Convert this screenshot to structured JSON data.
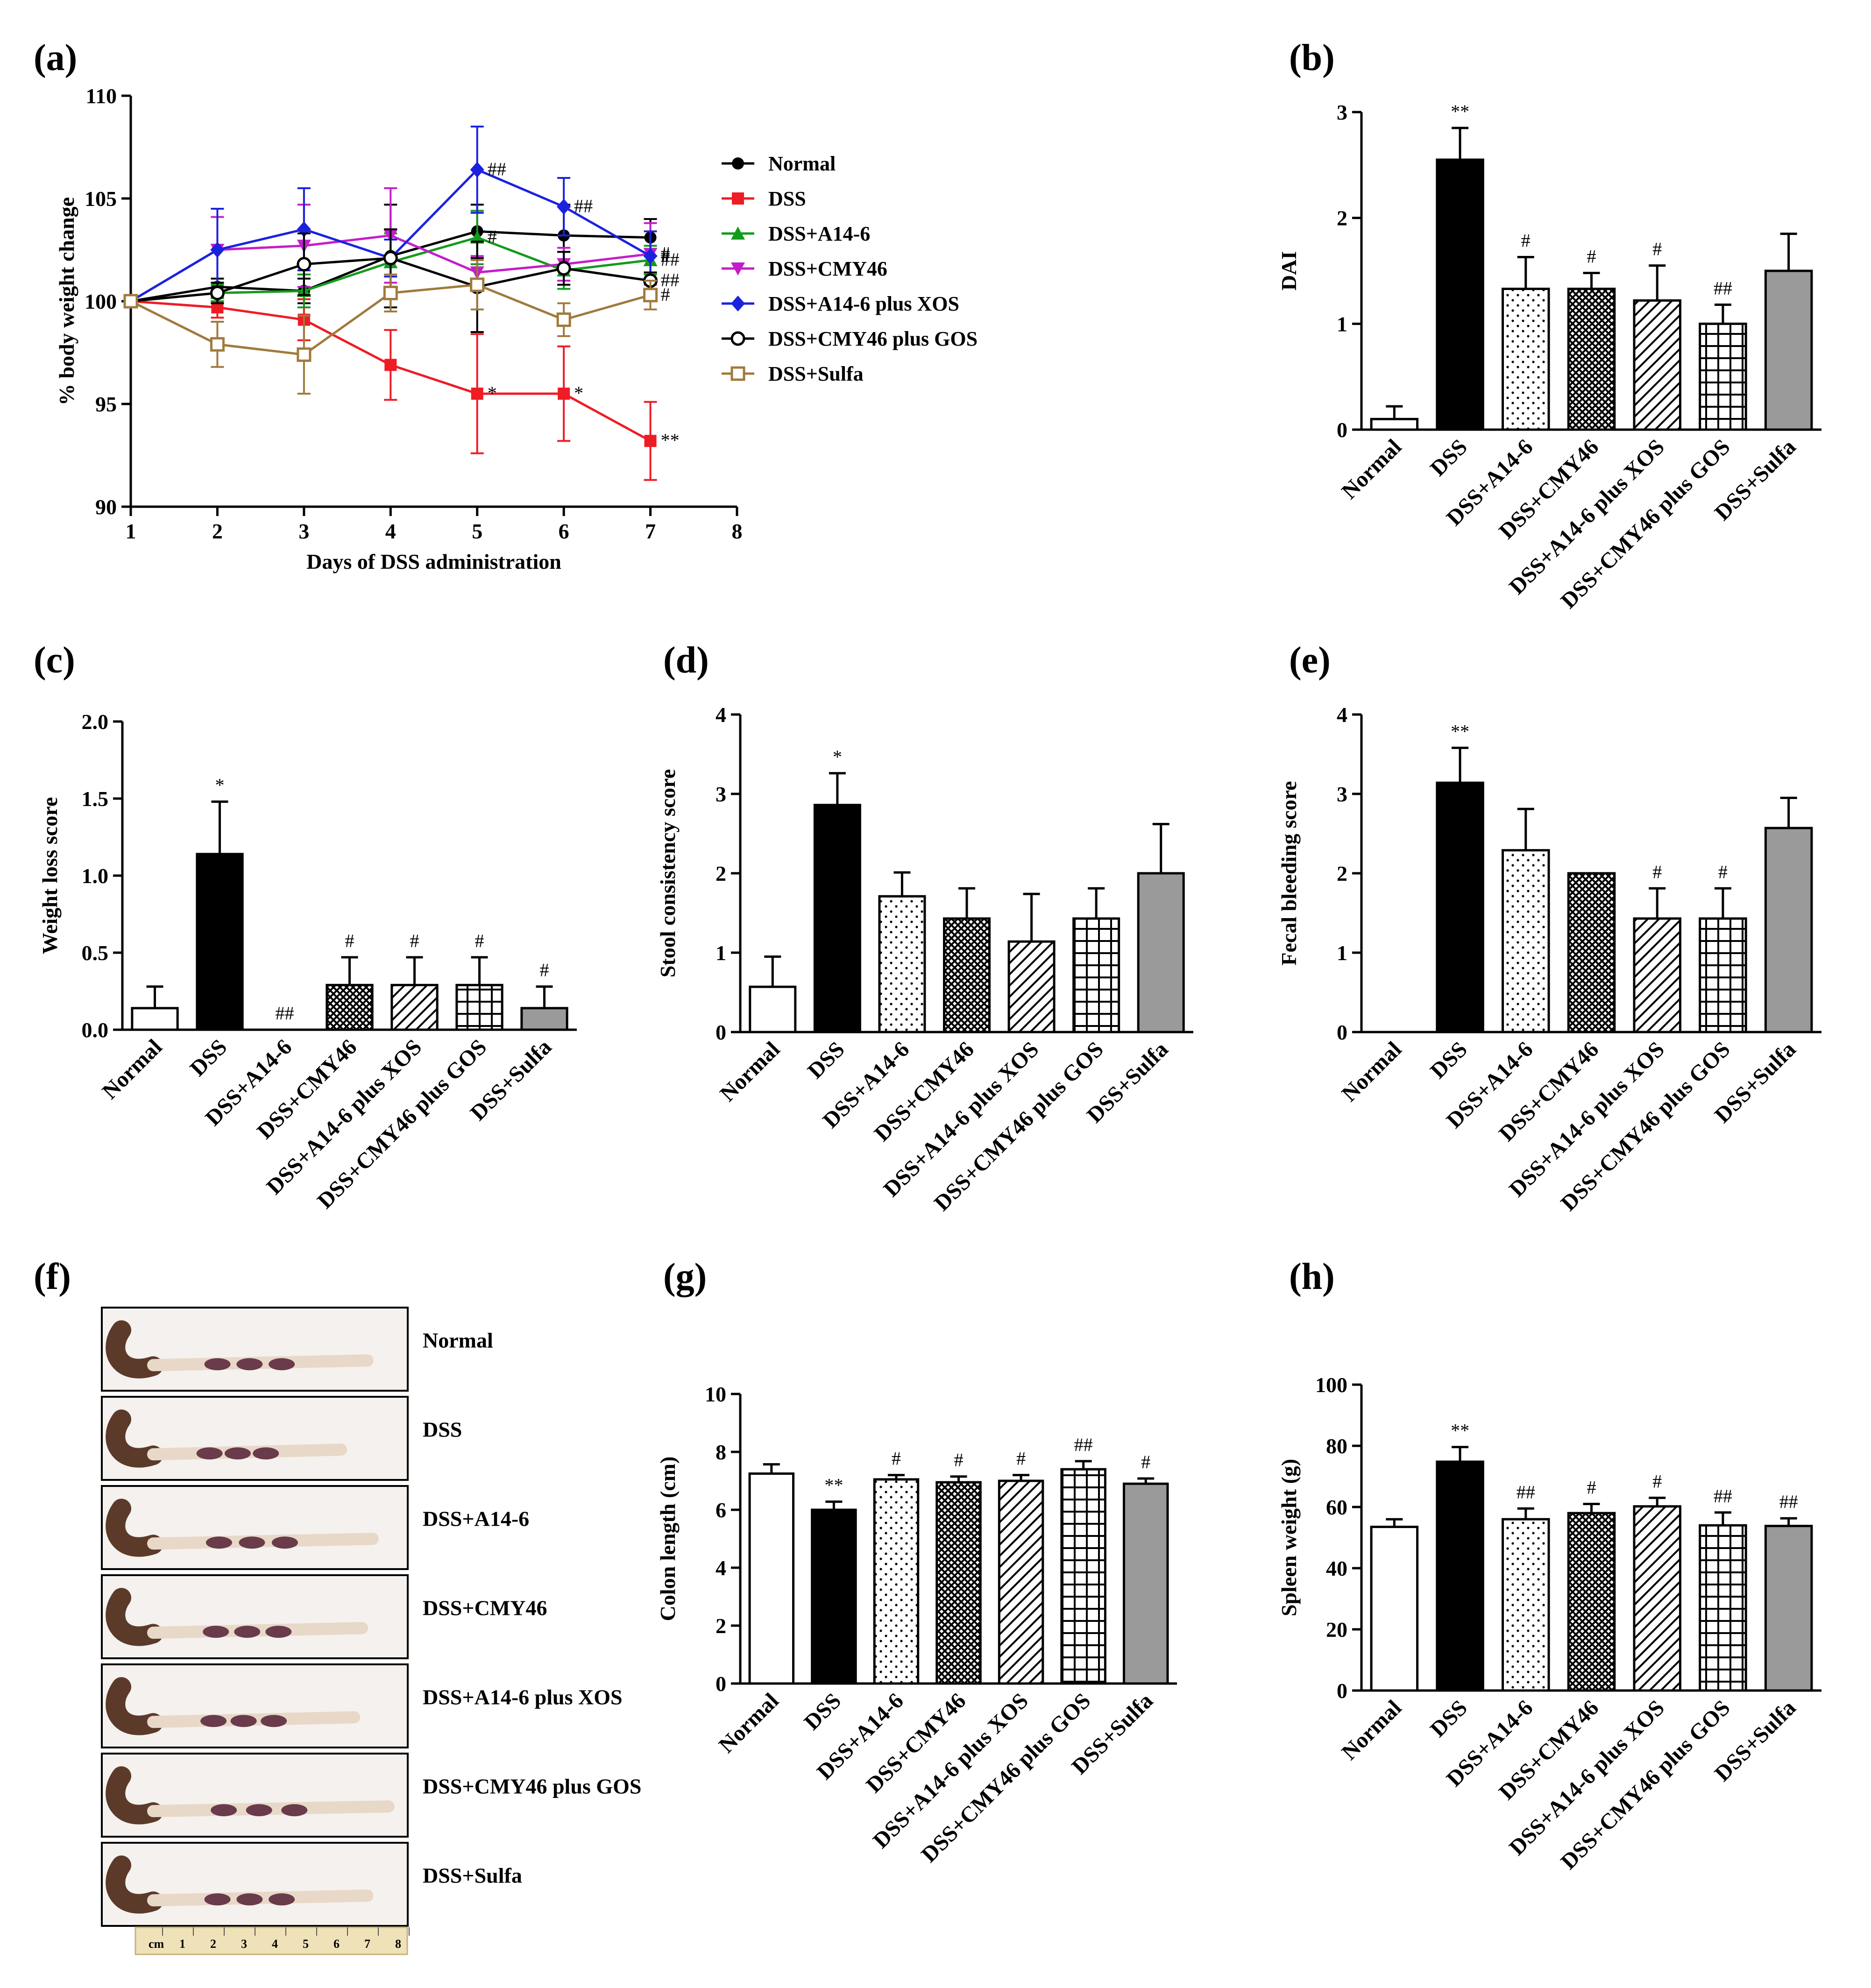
{
  "colors": {
    "normal": "#000000",
    "dss": "#ee1c25",
    "a146": "#139b1c",
    "cmy46": "#c41ec8",
    "a146_xos": "#1a22e0",
    "cmy46_gos": "#000000",
    "sulfa": "#a07a3c",
    "bar_dss": "#000000",
    "bar_sulfa": "#9a9a9a",
    "bar_white": "#ffffff"
  },
  "patterns": [
    "white",
    "black",
    "dots",
    "crosshatch",
    "diagonal",
    "grid",
    "gray"
  ],
  "chart_data": [
    {
      "id": "a",
      "panel_label": "(a)",
      "type": "line",
      "xlabel": "Days of DSS administration",
      "ylabel": "% body weight change",
      "xlim": [
        1,
        8
      ],
      "ylim": [
        90,
        110
      ],
      "xticks": [
        "1",
        "2",
        "3",
        "4",
        "5",
        "6",
        "7",
        "8"
      ],
      "yticks": [
        "90",
        "95",
        "100",
        "105",
        "110"
      ],
      "x": [
        1,
        2,
        3,
        4,
        5,
        6,
        7
      ],
      "series": [
        {
          "name": "Normal",
          "key": "normal",
          "marker": "circle",
          "values": [
            100,
            100.7,
            100.5,
            102.2,
            103.4,
            103.2,
            103.1
          ],
          "err": [
            0,
            0.4,
            0.6,
            2.5,
            1.3,
            1.5,
            0.9
          ],
          "sig": [
            "",
            "",
            "",
            "",
            "",
            "",
            ""
          ]
        },
        {
          "name": "DSS",
          "key": "dss",
          "marker": "square",
          "values": [
            100,
            99.7,
            99.1,
            96.9,
            95.5,
            95.5,
            93.2
          ],
          "err": [
            0,
            0.5,
            1.0,
            1.7,
            2.9,
            2.3,
            1.9
          ],
          "sig": [
            "",
            "",
            "",
            "",
            "*",
            "*",
            "**"
          ]
        },
        {
          "name": "DSS+A14-6",
          "key": "a146",
          "marker": "triangle-up",
          "values": [
            100,
            100.4,
            100.5,
            101.9,
            103.1,
            101.5,
            102.0
          ],
          "err": [
            0,
            0.4,
            0.8,
            1.4,
            1.3,
            0.9,
            0.7
          ],
          "sig": [
            "",
            "",
            "",
            "",
            "#",
            "",
            "##"
          ]
        },
        {
          "name": "DSS+CMY46",
          "key": "cmy46",
          "marker": "triangle-down",
          "values": [
            100,
            102.5,
            102.7,
            103.2,
            101.4,
            101.8,
            102.3
          ],
          "err": [
            0,
            1.6,
            2.0,
            2.3,
            0.8,
            0.8,
            1.5
          ],
          "sig": [
            "",
            "",
            "",
            "",
            "",
            "",
            "#"
          ]
        },
        {
          "name": "DSS+A14-6 plus XOS",
          "key": "a146_xos",
          "marker": "diamond",
          "values": [
            100,
            102.5,
            103.5,
            102.1,
            106.4,
            104.6,
            102.2
          ],
          "err": [
            0,
            2.0,
            2.0,
            0.9,
            2.1,
            1.4,
            1.2
          ],
          "sig": [
            "",
            "",
            "",
            "",
            "##",
            "##",
            "#"
          ]
        },
        {
          "name": "DSS+CMY46 plus GOS",
          "key": "cmy46_gos",
          "marker": "circle-open",
          "values": [
            100,
            100.4,
            101.8,
            102.1,
            100.7,
            101.6,
            101.0
          ],
          "err": [
            0,
            0.5,
            1.5,
            1.4,
            2.2,
            0.8,
            0.4
          ],
          "sig": [
            "",
            "",
            "",
            "",
            "",
            "",
            "##"
          ]
        },
        {
          "name": "DSS+Sulfa",
          "key": "sulfa",
          "marker": "square-open",
          "values": [
            100,
            97.9,
            97.4,
            100.4,
            100.8,
            99.1,
            100.3
          ],
          "err": [
            0,
            1.1,
            1.9,
            0.9,
            1.2,
            0.8,
            0.7
          ],
          "sig": [
            "",
            "",
            "",
            "",
            "",
            "",
            "#"
          ]
        }
      ]
    },
    {
      "id": "b",
      "panel_label": "(b)",
      "type": "bar",
      "ylabel": "DAI",
      "ylim": [
        0,
        3
      ],
      "yticks": [
        "0",
        "1",
        "2",
        "3"
      ],
      "categories": [
        "Normal",
        "DSS",
        "DSS+A14-6",
        "DSS+CMY46",
        "DSS+A14-6 plus XOS",
        "DSS+CMY46 plus GOS",
        "DSS+Sulfa"
      ],
      "values": [
        0.1,
        2.55,
        1.33,
        1.33,
        1.22,
        1.0,
        1.5
      ],
      "err": [
        0.12,
        0.3,
        0.3,
        0.15,
        0.33,
        0.18,
        0.35
      ],
      "sig": [
        "",
        "**",
        "#",
        "#",
        "#",
        "##",
        ""
      ]
    },
    {
      "id": "c",
      "panel_label": "(c)",
      "type": "bar",
      "ylabel": "Weight loss score",
      "ylim": [
        0,
        2.0
      ],
      "yticks": [
        "0.0",
        "0.5",
        "1.0",
        "1.5",
        "2.0"
      ],
      "categories": [
        "Normal",
        "DSS",
        "DSS+A14-6",
        "DSS+CMY46",
        "DSS+A14-6 plus XOS",
        "DSS+CMY46 plus GOS",
        "DSS+Sulfa"
      ],
      "values": [
        0.14,
        1.14,
        0,
        0.29,
        0.29,
        0.29,
        0.14
      ],
      "err": [
        0.14,
        0.34,
        0,
        0.18,
        0.18,
        0.18,
        0.14
      ],
      "sig": [
        "",
        "*",
        "##",
        "#",
        "#",
        "#",
        "#"
      ]
    },
    {
      "id": "d",
      "panel_label": "(d)",
      "type": "bar",
      "ylabel": "Stool consistency score",
      "ylim": [
        0,
        4
      ],
      "yticks": [
        "0",
        "1",
        "2",
        "3",
        "4"
      ],
      "categories": [
        "Normal",
        "DSS",
        "DSS+A14-6",
        "DSS+CMY46",
        "DSS+A14-6 plus XOS",
        "DSS+CMY46 plus GOS",
        "DSS+Sulfa"
      ],
      "values": [
        0.57,
        2.86,
        1.71,
        1.43,
        1.14,
        1.43,
        2.0
      ],
      "err": [
        0.38,
        0.4,
        0.3,
        0.38,
        0.6,
        0.38,
        0.62
      ],
      "sig": [
        "",
        "*",
        "",
        "",
        "",
        "",
        ""
      ]
    },
    {
      "id": "e",
      "panel_label": "(e)",
      "type": "bar",
      "ylabel": "Fecal bleeding score",
      "ylim": [
        0,
        4
      ],
      "yticks": [
        "0",
        "1",
        "2",
        "3",
        "4"
      ],
      "categories": [
        "Normal",
        "DSS",
        "DSS+A14-6",
        "DSS+CMY46",
        "DSS+A14-6 plus XOS",
        "DSS+CMY46 plus GOS",
        "DSS+Sulfa"
      ],
      "values": [
        0,
        3.14,
        2.29,
        2.0,
        1.43,
        1.43,
        2.57
      ],
      "err": [
        0,
        0.44,
        0.52,
        0,
        0.38,
        0.38,
        0.38
      ],
      "sig": [
        "",
        "**",
        "",
        "",
        "#",
        "#",
        ""
      ]
    },
    {
      "id": "g",
      "panel_label": "(g)",
      "type": "bar",
      "ylabel": "Colon length (cm)",
      "ylim": [
        0,
        10
      ],
      "yticks": [
        "0",
        "2",
        "4",
        "6",
        "8",
        "10"
      ],
      "categories": [
        "Normal",
        "DSS",
        "DSS+A14-6",
        "DSS+CMY46",
        "DSS+A14-6 plus XOS",
        "DSS+CMY46 plus GOS",
        "DSS+Sulfa"
      ],
      "values": [
        7.25,
        6.0,
        7.05,
        6.95,
        7.0,
        7.4,
        6.9
      ],
      "err": [
        0.32,
        0.28,
        0.15,
        0.2,
        0.2,
        0.28,
        0.18
      ],
      "sig": [
        "",
        "**",
        "#",
        "#",
        "#",
        "##",
        "#"
      ]
    },
    {
      "id": "h",
      "panel_label": "(h)",
      "type": "bar",
      "ylabel": "Spleen weight (g)",
      "ylim": [
        0,
        100
      ],
      "yticks": [
        "0",
        "20",
        "40",
        "60",
        "80",
        "100"
      ],
      "categories": [
        "Normal",
        "DSS",
        "DSS+A14-6",
        "DSS+CMY46",
        "DSS+A14-6 plus XOS",
        "DSS+CMY46 plus GOS",
        "DSS+Sulfa"
      ],
      "values": [
        53.5,
        74.8,
        56.0,
        58.0,
        60.2,
        54.0,
        53.8
      ],
      "err": [
        2.5,
        4.8,
        3.5,
        3.0,
        2.8,
        4.2,
        2.5
      ],
      "sig": [
        "",
        "**",
        "##",
        "#",
        "#",
        "##",
        "##"
      ]
    }
  ],
  "photo_panel": {
    "panel_label": "(f)",
    "labels": [
      "Normal",
      "DSS",
      "DSS+A14-6",
      "DSS+CMY46",
      "DSS+A14-6 plus XOS",
      "DSS+CMY46 plus GOS",
      "DSS+Sulfa"
    ],
    "ruler_ticks": [
      "cm",
      "1",
      "2",
      "3",
      "4",
      "5",
      "6",
      "7",
      "8"
    ]
  }
}
